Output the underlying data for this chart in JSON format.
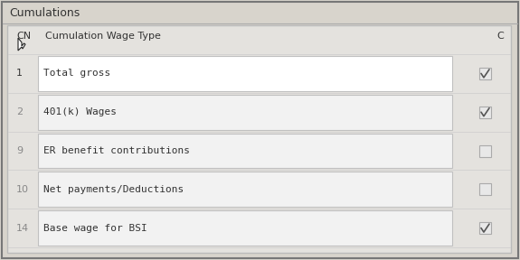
{
  "title": "Cumulations",
  "col_headers": [
    "CN",
    "Cumulation Wage Type",
    "C"
  ],
  "rows": [
    {
      "cn": "1",
      "label": "Total gross",
      "checked": true,
      "selected": true
    },
    {
      "cn": "2",
      "label": "401(k) Wages",
      "checked": true,
      "selected": false
    },
    {
      "cn": "9",
      "label": "ER benefit contributions",
      "checked": false,
      "selected": false
    },
    {
      "cn": "10",
      "label": "Net payments/Deductions",
      "checked": false,
      "selected": false
    },
    {
      "cn": "14",
      "label": "Base wage for BSI",
      "checked": true,
      "selected": false
    }
  ],
  "outer_bg": "#d8d4cc",
  "inner_bg": "#e4e2de",
  "row_bg": "#ebebeb",
  "label_box_bg": "#f2f2f2",
  "label_box_bg_selected": "#ffffff",
  "border_color": "#888888",
  "inner_border_color": "#aaaaaa",
  "text_color": "#333333",
  "dim_text_color": "#888888",
  "title_fontsize": 9,
  "header_fontsize": 8,
  "row_fontsize": 8,
  "checkbox_bg": "#e8e8e8",
  "checkbox_border": "#aaaaaa",
  "check_color": "#555555"
}
